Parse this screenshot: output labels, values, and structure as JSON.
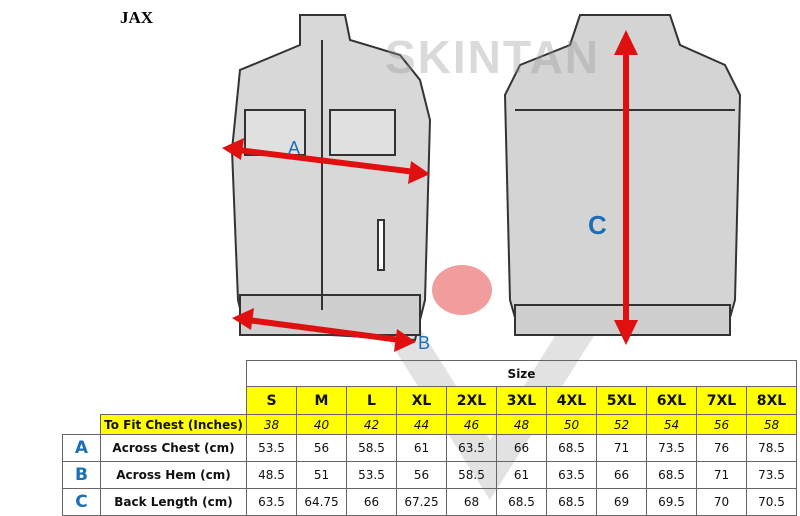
{
  "title": "JAX",
  "watermark": "SKINTAN",
  "diagram_labels": {
    "a": "A",
    "b": "B",
    "c": "C"
  },
  "colors": {
    "arrow": "#e01010",
    "label": "#1a6fb5",
    "highlight": "#ffff00"
  },
  "table": {
    "size_heading": "Size",
    "sizes": [
      "S",
      "M",
      "L",
      "XL",
      "2XL",
      "3XL",
      "4XL",
      "5XL",
      "6XL",
      "7XL",
      "8XL"
    ],
    "chest_label": "To Fit Chest (Inches)",
    "chest": [
      "38",
      "40",
      "42",
      "44",
      "46",
      "48",
      "50",
      "52",
      "54",
      "56",
      "58"
    ],
    "rows": [
      {
        "letter": "A",
        "label": "Across Chest (cm)",
        "values": [
          "53.5",
          "56",
          "58.5",
          "61",
          "63.5",
          "66",
          "68.5",
          "71",
          "73.5",
          "76",
          "78.5"
        ]
      },
      {
        "letter": "B",
        "label": "Across Hem (cm)",
        "values": [
          "48.5",
          "51",
          "53.5",
          "56",
          "58.5",
          "61",
          "63.5",
          "66",
          "68.5",
          "71",
          "73.5"
        ]
      },
      {
        "letter": "C",
        "label": "Back Length (cm)",
        "values": [
          "63.5",
          "64.75",
          "66",
          "67.25",
          "68",
          "68.5",
          "68.5",
          "69",
          "69.5",
          "70",
          "70.5"
        ]
      }
    ]
  }
}
